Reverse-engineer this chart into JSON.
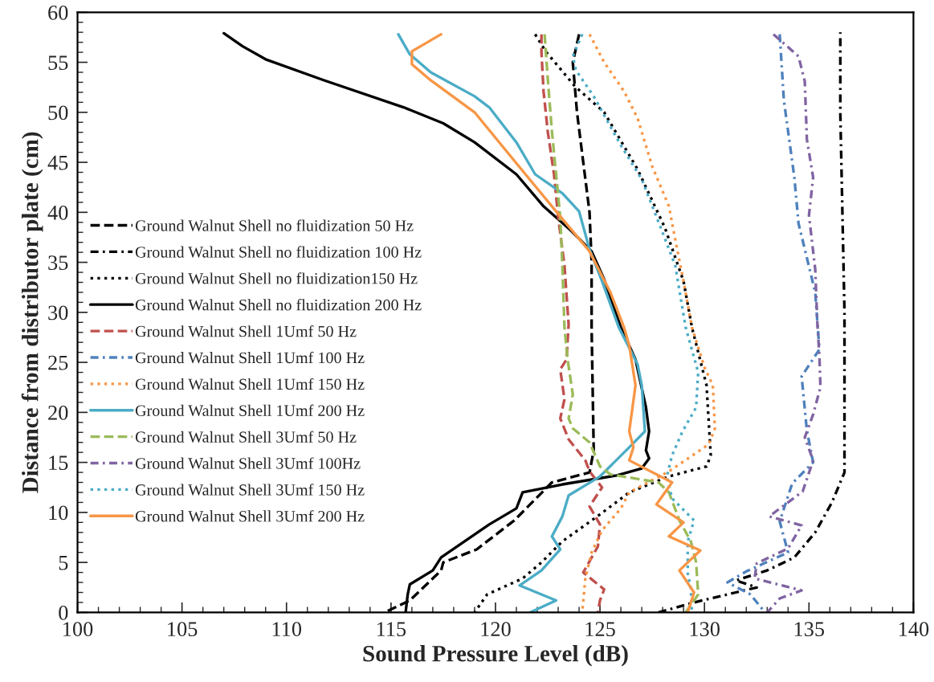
{
  "chart_data": {
    "type": "line",
    "xlabel": "Sound Pressure Level (dB)",
    "ylabel": "Distance from distributor plate (cm)",
    "xlim": [
      100,
      140
    ],
    "xticks": [
      100,
      105,
      110,
      115,
      120,
      125,
      130,
      135,
      140
    ],
    "ylim": [
      0,
      60
    ],
    "yticks": [
      0,
      5,
      10,
      15,
      20,
      25,
      30,
      35,
      40,
      45,
      50,
      55,
      60
    ],
    "grid": false,
    "legend": "left",
    "marker": "none",
    "series": [
      {
        "name": "Ground Walnut Shell no fluidization 50 Hz",
        "color": "#000000",
        "line_style": "dashed",
        "x": [
          124.0,
          123.7,
          123.9,
          124.2,
          124.5,
          124.6,
          124.6,
          124.7,
          124.5,
          122.7,
          120.9,
          119.1,
          117.5,
          117.4,
          115.9,
          114.7
        ],
        "values": [
          57.8,
          55,
          50,
          45,
          40,
          35,
          28.5,
          16.2,
          14,
          13,
          9.2,
          6.3,
          5.0,
          4.2,
          1.2,
          0
        ]
      },
      {
        "name": "Ground Walnut Shell no fluidization 100 Hz",
        "color": "#000000",
        "line_style": "dashdot",
        "x": [
          127.8,
          129.5,
          131.5,
          132.5,
          131.5,
          133.0,
          134.3,
          135.3,
          136.1,
          136.7,
          136.7,
          136.7,
          136.6,
          136.5,
          136.5
        ],
        "values": [
          0,
          1,
          2,
          2.5,
          3.2,
          4.2,
          5.5,
          8,
          11,
          14,
          20,
          30,
          40,
          50,
          58
        ]
      },
      {
        "name": "Ground Walnut Shell no fluidization150 Hz",
        "color": "#000000",
        "line_style": "dotted",
        "x": [
          121.9,
          122.4,
          123.8,
          125.2,
          126.8,
          128.1,
          129.0,
          129.4,
          130.1,
          130.3,
          130.1,
          128.3,
          126.4,
          125.0,
          123.2,
          122.2,
          121.3,
          119.6,
          119.0
        ],
        "values": [
          57.8,
          56.1,
          52.6,
          50,
          44.3,
          38.5,
          33.1,
          28.5,
          22.7,
          15.7,
          14.6,
          13.6,
          12,
          9.8,
          7.1,
          5,
          3.4,
          1.8,
          0
        ]
      },
      {
        "name": "Ground Walnut Shell no fluidization 200 Hz",
        "color": "#000000",
        "line_style": "solid",
        "x": [
          107.0,
          107.9,
          109.0,
          111.8,
          115.6,
          117.5,
          119.0,
          121.0,
          122.3,
          123.6,
          124.6,
          125.2,
          126.0,
          126.7,
          127.2,
          127.35,
          127.2,
          127.35,
          127.0,
          125.8,
          123.2,
          121.3,
          121.0,
          119.7,
          117.4,
          117.0,
          115.9,
          115.8,
          115.7
        ],
        "values": [
          57.9,
          56.6,
          55.3,
          53.2,
          50.5,
          48.9,
          47,
          43.8,
          40.6,
          38.2,
          36.1,
          33.3,
          28.5,
          25.3,
          20.5,
          18.1,
          16.2,
          15.4,
          14.4,
          13.7,
          12.8,
          12,
          10.4,
          8.8,
          5.5,
          4.2,
          2.8,
          1.8,
          0
        ]
      },
      {
        "name": "Ground Walnut Shell 1Umf 50 Hz",
        "color": "#c0504d",
        "line_style": "dashed",
        "x": [
          122.2,
          122.2,
          122.3,
          122.5,
          122.8,
          123.0,
          123.3,
          123.5,
          123.4,
          123.1,
          123.3,
          123.1,
          123.5,
          124.3,
          124.5,
          125.1,
          124.5,
          125.0,
          124.9,
          124.2,
          125.2,
          125.0,
          124.9
        ],
        "values": [
          57.8,
          56,
          52.1,
          48.1,
          43.8,
          39.5,
          34.7,
          28.8,
          25.3,
          24.3,
          21.3,
          19.4,
          17.3,
          15.2,
          14.1,
          12.5,
          10.6,
          8.8,
          6.6,
          4.0,
          2.3,
          1.2,
          0
        ]
      },
      {
        "name": "Ground Walnut Shell 1Umf 100 Hz",
        "color": "#4f81bd",
        "line_style": "dashdot",
        "x": [
          133.6,
          133.8,
          134.3,
          134.5,
          135.3,
          135.5,
          134.65,
          134.9,
          135.2,
          134.2,
          133.6,
          134.0,
          132.0,
          131.1,
          132.2,
          132.9
        ],
        "values": [
          57.8,
          51.2,
          43.5,
          38.9,
          32,
          26.3,
          23.6,
          18.2,
          15,
          12.9,
          9.1,
          6,
          4.1,
          3,
          1.8,
          0
        ]
      },
      {
        "name": "Ground Walnut Shell 1Umf 150 Hz",
        "color": "#f79646",
        "line_style": "dotted",
        "x": [
          124.5,
          125.2,
          126.15,
          126.8,
          127.5,
          128.3,
          128.6,
          129.0,
          129.4,
          130.0,
          130.4,
          130.5,
          130.2,
          128.3,
          126.4,
          126.0,
          125.1,
          124.6,
          124.3,
          124.15
        ],
        "values": [
          57.8,
          55,
          52.1,
          49.4,
          44.6,
          40.6,
          37.3,
          33.1,
          28.5,
          24.5,
          22.7,
          18.4,
          16.8,
          14.1,
          12,
          10.4,
          8.2,
          6,
          3.4,
          0
        ]
      },
      {
        "name": "Ground Walnut Shell 1Umf 200 Hz",
        "color": "#4bacc6",
        "line_style": "solid",
        "x": [
          115.35,
          115.9,
          116.9,
          119.0,
          119.7,
          121.0,
          121.9,
          123.2,
          124.0,
          124.5,
          125.1,
          125.9,
          126.8,
          127.0,
          127.15,
          126.4,
          125.0,
          123.5,
          123.2,
          122.7,
          123.1,
          122.2,
          121.15,
          122.9,
          121.65
        ],
        "values": [
          57.8,
          55.8,
          54,
          51.6,
          50.5,
          47,
          43.8,
          41.9,
          40.1,
          36.3,
          33.1,
          28.5,
          24.8,
          22.7,
          18.1,
          16.5,
          13.6,
          11.7,
          9.6,
          7.6,
          6.3,
          4.2,
          2.7,
          1.2,
          0
        ]
      },
      {
        "name": "Ground Walnut Shell 3Umf 50 Hz",
        "color": "#9bbb59",
        "line_style": "dashed",
        "x": [
          122.35,
          122.5,
          122.7,
          122.9,
          123.1,
          123.2,
          123.3,
          123.45,
          123.7,
          123.5,
          123.7,
          124.5,
          125.0,
          125.5,
          127.8,
          128.3,
          128.8,
          129.35,
          129.6,
          129.7,
          129.1
        ],
        "values": [
          57.8,
          53.4,
          48.1,
          43.8,
          39.5,
          34.7,
          28.5,
          25.3,
          21.8,
          19.4,
          18.4,
          17,
          14.6,
          13.8,
          13,
          12,
          9.2,
          7.1,
          5,
          1.8,
          0
        ]
      },
      {
        "name": "Ground Walnut Shell 3Umf 100Hz",
        "color": "#8064a2",
        "line_style": "dashdot",
        "x": [
          133.3,
          134.5,
          134.8,
          134.9,
          135.2,
          135.0,
          135.3,
          135.4,
          135.5,
          135.55,
          135.2,
          134.8,
          135.2,
          134.7,
          133.1,
          134.65,
          134.0,
          132.5,
          132.4,
          134.65,
          133.6,
          133.0
        ],
        "values": [
          57.8,
          55.6,
          53.1,
          47.3,
          43.5,
          39.7,
          34.3,
          29,
          25.6,
          22.5,
          19.8,
          17.5,
          15.2,
          12.1,
          9.6,
          8.7,
          6.4,
          4.9,
          3.4,
          2.2,
          1.4,
          0
        ]
      },
      {
        "name": "Ground Walnut Shell 3Umf 150 Hz",
        "color": "#4bacc6",
        "line_style": "dotted",
        "x": [
          124.15,
          123.7,
          123.85,
          124.7,
          126.0,
          127.0,
          127.9,
          128.6,
          129.1,
          129.7,
          129.6,
          128.95,
          128.45,
          128.2,
          128.45,
          129.5,
          129.2,
          129.2,
          129.35,
          129.4
        ],
        "values": [
          57.8,
          55.6,
          54.2,
          51.6,
          46.7,
          43.3,
          38.5,
          34.7,
          28.5,
          24,
          20.5,
          18.1,
          15.7,
          13.6,
          11.4,
          9.2,
          7.1,
          3.9,
          2.3,
          0
        ]
      },
      {
        "name": "Ground Walnut Shell 3Umf 200 Hz",
        "color": "#f79646",
        "line_style": "solid",
        "x": [
          117.4,
          116.0,
          116.0,
          116.9,
          119.0,
          121.0,
          122.9,
          124.5,
          125.5,
          126.15,
          126.4,
          126.7,
          126.4,
          126.6,
          126.4,
          128.45,
          127.7,
          129.0,
          128.3,
          129.8,
          128.8,
          129.5,
          129.2
        ],
        "values": [
          57.8,
          56.1,
          54.8,
          53.2,
          50,
          44.9,
          40.1,
          36.1,
          32,
          28.5,
          26.7,
          22.7,
          18.1,
          16.5,
          15.2,
          13,
          10.8,
          9,
          7.6,
          6.2,
          4.2,
          2.0,
          0
        ]
      }
    ]
  }
}
